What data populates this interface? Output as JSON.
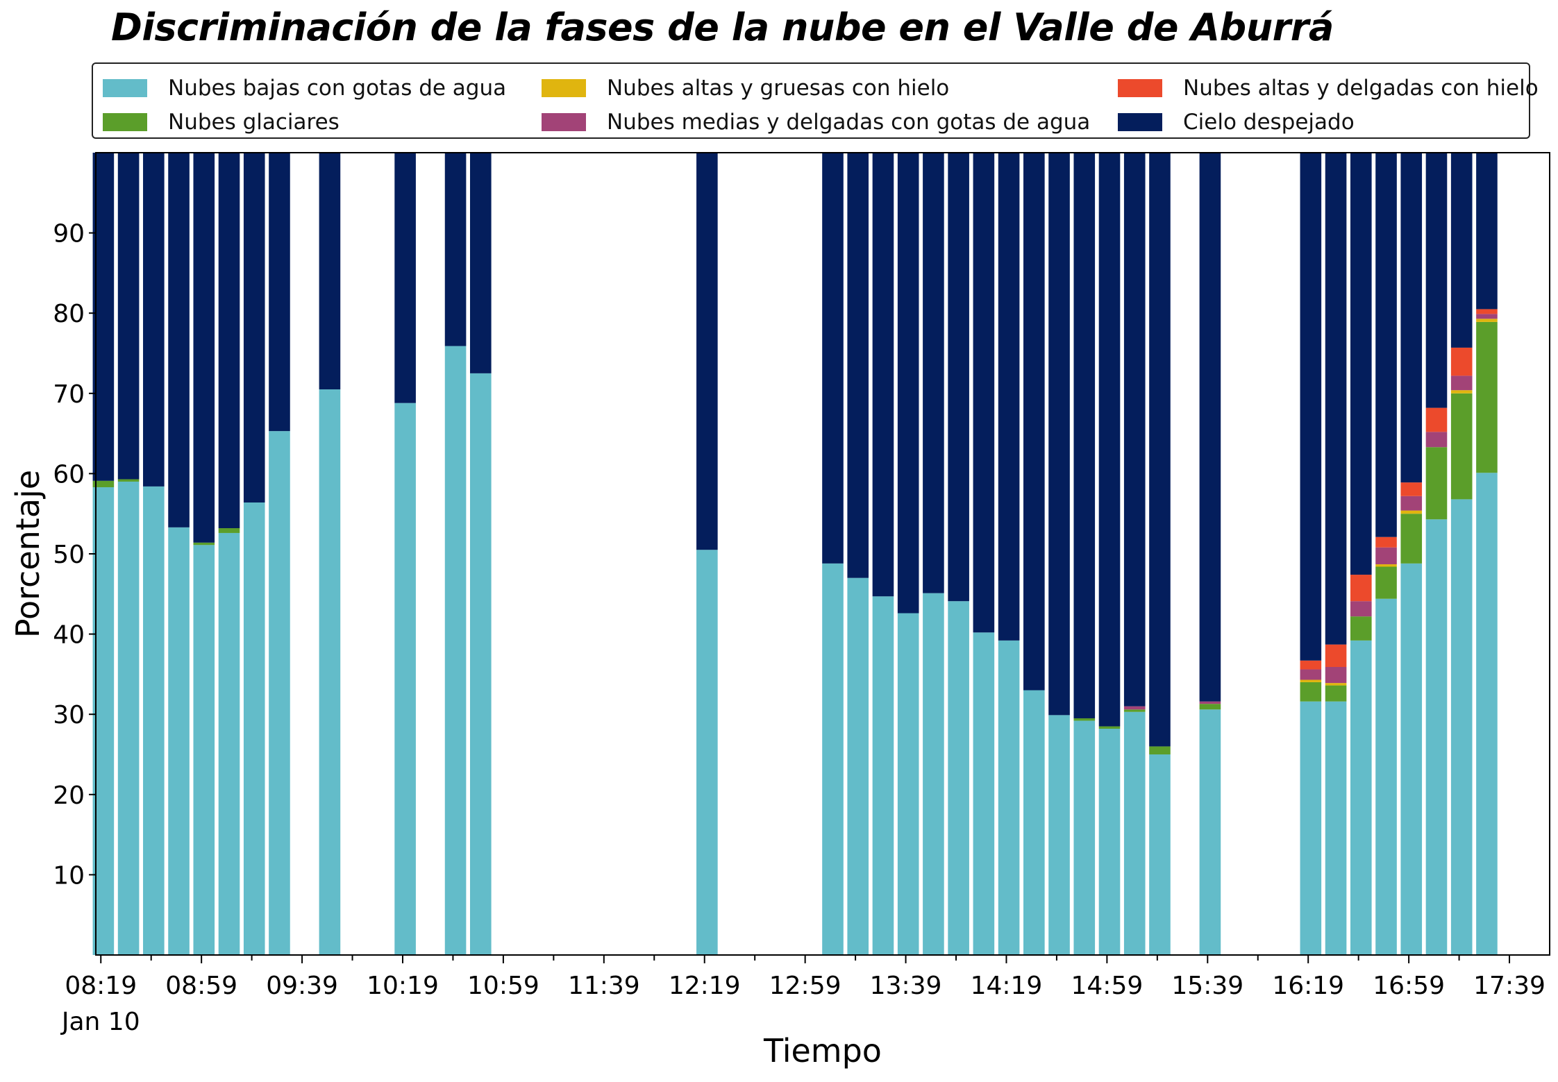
{
  "chart_data": {
    "type": "bar",
    "stacked": true,
    "title": "Discriminación de la fases de la nube en el Valle de Aburrá",
    "xlabel": "Tiempo",
    "ylabel": "Porcentaje",
    "ylim": [
      0,
      100
    ],
    "yticks": [
      10,
      20,
      30,
      40,
      50,
      60,
      70,
      80,
      90
    ],
    "xlim": [
      "08:17",
      "17:55"
    ],
    "xticks": [
      "08:19",
      "08:59",
      "09:39",
      "10:19",
      "10:59",
      "11:39",
      "12:19",
      "12:59",
      "13:39",
      "14:19",
      "14:59",
      "15:39",
      "16:19",
      "16:59",
      "17:39"
    ],
    "xtick_sublabel": "Jan 10",
    "legend_position": "top",
    "grid": false,
    "x": [
      "08:20",
      "08:30",
      "08:40",
      "08:50",
      "09:00",
      "09:10",
      "09:20",
      "09:30",
      "09:50",
      "10:20",
      "10:40",
      "10:50",
      "12:20",
      "13:10",
      "13:20",
      "13:30",
      "13:40",
      "13:50",
      "14:00",
      "14:10",
      "14:20",
      "14:30",
      "14:40",
      "14:50",
      "15:00",
      "15:10",
      "15:20",
      "15:40",
      "16:20",
      "16:30",
      "16:40",
      "16:50",
      "17:00",
      "17:10",
      "17:20",
      "17:30"
    ],
    "series": [
      {
        "name": "Nubes bajas con gotas de agua",
        "color": "#63bcc9",
        "values": [
          58.3,
          59.0,
          58.4,
          53.3,
          51.1,
          52.6,
          56.4,
          65.3,
          70.5,
          68.8,
          75.9,
          72.5,
          50.5,
          48.8,
          47.0,
          44.7,
          42.6,
          45.1,
          44.1,
          40.2,
          39.2,
          33.0,
          29.9,
          29.2,
          28.2,
          30.3,
          25.0,
          30.6,
          31.6,
          31.6,
          39.2,
          44.4,
          48.8,
          54.3,
          56.8,
          60.1
        ]
      },
      {
        "name": "Nubes glaciares",
        "color": "#5b9e2a",
        "values": [
          0.8,
          0.3,
          0,
          0,
          0.3,
          0.6,
          0,
          0,
          0,
          0,
          0,
          0,
          0,
          0,
          0,
          0,
          0,
          0,
          0,
          0,
          0,
          0,
          0,
          0.3,
          0.3,
          0.3,
          1.0,
          0.7,
          2.4,
          2.0,
          3.0,
          4.0,
          6.2,
          9.0,
          13.2,
          18.8
        ]
      },
      {
        "name": "Nubes altas y gruesas con hielo",
        "color": "#e0b50f",
        "values": [
          0,
          0,
          0,
          0,
          0,
          0,
          0,
          0,
          0,
          0,
          0,
          0,
          0,
          0,
          0,
          0,
          0,
          0,
          0,
          0,
          0,
          0,
          0,
          0,
          0,
          0,
          0,
          0,
          0.3,
          0.3,
          0,
          0.3,
          0.4,
          0,
          0.4,
          0.4
        ]
      },
      {
        "name": "Nubes medias y delgadas con gotas de agua",
        "color": "#a24377",
        "values": [
          0,
          0,
          0,
          0,
          0,
          0,
          0,
          0,
          0,
          0,
          0,
          0,
          0,
          0,
          0,
          0,
          0,
          0,
          0,
          0,
          0,
          0,
          0,
          0,
          0,
          0.4,
          0,
          0.3,
          1.3,
          2.0,
          1.9,
          2.1,
          1.8,
          1.9,
          1.8,
          0.6
        ]
      },
      {
        "name": "Nubes altas y delgadas con hielo",
        "color": "#ec4a2c",
        "values": [
          0,
          0,
          0,
          0,
          0,
          0,
          0,
          0,
          0,
          0,
          0,
          0,
          0,
          0,
          0,
          0,
          0,
          0,
          0,
          0,
          0,
          0,
          0,
          0,
          0,
          0,
          0,
          0,
          1.1,
          2.8,
          3.3,
          1.3,
          1.7,
          3.0,
          3.5,
          0.6
        ]
      },
      {
        "name": "Cielo despejado",
        "color": "#041e5c",
        "values": [
          40.9,
          40.7,
          41.6,
          46.7,
          48.6,
          46.8,
          43.6,
          34.7,
          29.5,
          31.2,
          24.1,
          27.5,
          49.5,
          51.2,
          53.0,
          55.3,
          57.4,
          54.9,
          55.9,
          59.8,
          60.8,
          67.0,
          70.1,
          70.5,
          71.5,
          69.0,
          74.0,
          68.4,
          63.3,
          61.3,
          52.6,
          47.9,
          41.1,
          31.8,
          24.3,
          19.5
        ]
      }
    ]
  }
}
